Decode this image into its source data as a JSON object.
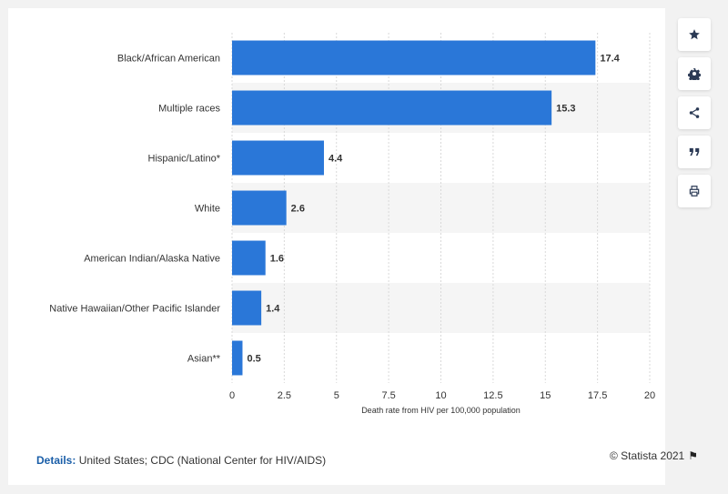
{
  "chart_data": {
    "type": "bar",
    "orientation": "horizontal",
    "categories": [
      "Black/African American",
      "Multiple races",
      "Hispanic/Latino*",
      "White",
      "American Indian/Alaska Native",
      "Native Hawaiian/Other Pacific Islander",
      "Asian**"
    ],
    "values": [
      17.4,
      15.3,
      4.4,
      2.6,
      1.6,
      1.4,
      0.5
    ],
    "value_labels": [
      "17.4",
      "15.3",
      "4.4",
      "2.6",
      "1.6",
      "1.4",
      "0.5"
    ],
    "xlabel": "Death rate from HIV per 100,000 population",
    "xlim": [
      0,
      20
    ],
    "xticks": [
      0,
      2.5,
      5,
      7.5,
      10,
      12.5,
      15,
      17.5,
      20
    ],
    "xtick_labels": [
      "0",
      "2.5",
      "5",
      "7.5",
      "10",
      "12.5",
      "15",
      "17.5",
      "20"
    ],
    "grid": true,
    "bar_color": "#2a77d8"
  },
  "sidebar": {
    "buttons": [
      {
        "icon": "star-icon"
      },
      {
        "icon": "gear-icon"
      },
      {
        "icon": "share-icon"
      },
      {
        "icon": "quote-icon"
      },
      {
        "icon": "print-icon"
      }
    ]
  },
  "footer": {
    "details_label": "Details:",
    "details_text": "United States; CDC (National Center for HIV/AIDS)",
    "credit": "© Statista 2021"
  }
}
